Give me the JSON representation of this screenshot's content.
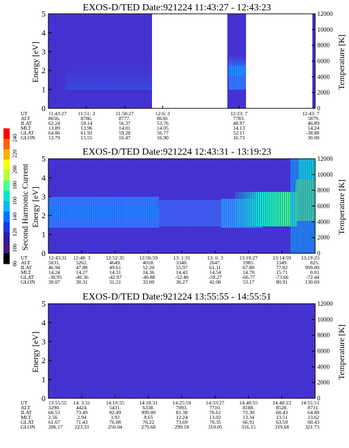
{
  "colorbar": {
    "label": "Second Harmonic Current",
    "ticks": [
      "240",
      "220",
      "200",
      "180",
      "160",
      "140",
      "120",
      "100",
      "80"
    ],
    "colors": [
      "#ff0000",
      "#ff6000",
      "#ffb000",
      "#ffff00",
      "#b0ff40",
      "#50ff90",
      "#00e8c8",
      "#00b8ff",
      "#0070ff",
      "#1838f0",
      "#2a1ca8",
      "#4a1480",
      "#000000"
    ]
  },
  "colors": {
    "background_fill": "#4030d0",
    "energy_band": "#2a78ff",
    "temperature_line": "#ffffff",
    "frame": "#000000"
  },
  "chart_data": [
    {
      "type": "heatmap",
      "title": "EXOS-D/TED  Date:921224  11:43:27 - 12:43:23",
      "ylabel": "Energy [eV]",
      "y2label": "Temperature [K]",
      "ylim": [
        0,
        5
      ],
      "y2lim": [
        0,
        12000
      ],
      "yticks": [
        "0",
        "1",
        "2",
        "3",
        "4",
        "5"
      ],
      "y2ticks": [
        "0",
        "2000",
        "4000",
        "6000",
        "8000",
        "10000",
        "12000"
      ],
      "data_gaps": [
        [
          "12:6: 3",
          "12:23: 7"
        ]
      ],
      "ephemeris": {
        "rows": [
          "UT",
          "ALT",
          "ILAT",
          "MLT",
          "GLAT",
          "GLON"
        ],
        "columns": [
          [
            "11:43:27",
            "8656.",
            "62.24",
            "13.89",
            "64.86",
            "13.79"
          ],
          [
            "11:51: 3",
            "8786.",
            "59.14",
            "13.96",
            "61.92",
            "15.55"
          ],
          [
            "11:58:27",
            "8777.",
            "56.37",
            "14.01",
            "59.28",
            "16.47"
          ],
          [
            "12:6: 3",
            "8630.",
            "53.76",
            "14.05",
            "56.77",
            "16.90"
          ],
          [
            "",
            "",
            "",
            "",
            "",
            ""
          ],
          [
            "12:23: 7",
            "7783.",
            "48.97",
            "14.13",
            "52.11",
            "16.73"
          ],
          [
            "",
            "",
            "",
            "",
            "",
            ""
          ],
          [
            "12:43: 7",
            "5879.",
            "46.89",
            "14.24",
            "-38.88",
            "30.08"
          ]
        ]
      }
    },
    {
      "type": "heatmap",
      "title": "EXOS-D/TED  Date:921224  12:43:31 - 13:19:23",
      "ylabel": "Energy [eV]",
      "y2label": "Temperature [K]",
      "ylim": [
        0,
        5
      ],
      "y2lim": [
        0,
        12000
      ],
      "yticks": [
        "0",
        "1",
        "2",
        "3",
        "4",
        "5"
      ],
      "y2ticks": [
        "0",
        "2000",
        "4000",
        "6000",
        "8000",
        "10000",
        "12000"
      ],
      "ephemeris": {
        "rows": [
          "UT",
          "ALT",
          "ILAT",
          "MLT",
          "GLAT",
          "GLON"
        ],
        "columns": [
          [
            "12:43:31",
            "5831.",
            "46.94",
            "14.24",
            "-38.95",
            "30.07"
          ],
          [
            "12:48: 3",
            "5262.",
            "47.88",
            "14.27",
            "-40.36",
            "30.31"
          ],
          [
            "12:52:35",
            "4649.",
            "49.61",
            "14.31",
            "-42.97",
            "31.21"
          ],
          [
            "12:56:59",
            "4018.",
            "52.20",
            "14.36",
            "-46.88",
            "33.00"
          ],
          [
            "13: 1:31",
            "3340.",
            "55.97",
            "14.43",
            "-52.40",
            "36.27"
          ],
          [
            "13: 6: 3",
            "2647.",
            "61.11",
            "14.54",
            "-59.27",
            "42.08"
          ],
          [
            "13:10:27",
            "1985.",
            "67.88",
            "14.78",
            "-66.77",
            "53.17"
          ],
          [
            "13:14:59",
            "1349.",
            "77.82",
            "15.71",
            "-73.66",
            "80.91"
          ],
          [
            "13:19:23",
            "825.",
            "999.00",
            "0.01",
            "-72.44",
            "130.69"
          ]
        ]
      }
    },
    {
      "type": "heatmap",
      "title": "EXOS-D/TED  Date:921224  13:55:55 - 14:55:51",
      "ylabel": "Energy [eV]",
      "y2label": "Temperature [K]",
      "ylim": [
        0,
        5
      ],
      "y2lim": [
        0,
        12000
      ],
      "yticks": [
        "0",
        "1",
        "2",
        "3",
        "4",
        "5"
      ],
      "y2ticks": [
        "0",
        "2000",
        "4000",
        "6000",
        "8000",
        "10000",
        "12000"
      ],
      "ephemeris": {
        "rows": [
          "UT",
          "ALT",
          "ILAT",
          "MLT",
          "GLAT",
          "GLON"
        ],
        "columns": [
          [
            "13:55:55",
            "3290.",
            "60.53",
            "2.56",
            "61.67",
            "206.17"
          ],
          [
            "14: 3:31",
            "4424.",
            "73.49",
            "2.94",
            "71.43",
            "223.33"
          ],
          [
            "14:10:55",
            "5431.",
            "82.49",
            "3.92",
            "76.08",
            "250.04"
          ],
          [
            "14:18:31",
            "6338.",
            "999.00",
            "8.65",
            "76.22",
            "279.68"
          ],
          [
            "14:25:59",
            "7093.",
            "81.38",
            "12.24",
            "73.69",
            "299.18"
          ],
          [
            "14:33:27",
            "7710.",
            "76.61",
            "13.02",
            "70.35",
            "310.05"
          ],
          [
            "14:40:55",
            "8188.",
            "72.30",
            "13.34",
            "66.91",
            "316.15"
          ],
          [
            "14:48:23",
            "8528.",
            "68.43",
            "13.51",
            "63.59",
            "319.68"
          ],
          [
            "14:55:51",
            "8731.",
            "64.88",
            "13.62",
            "60.43",
            "321.73"
          ]
        ]
      }
    }
  ]
}
